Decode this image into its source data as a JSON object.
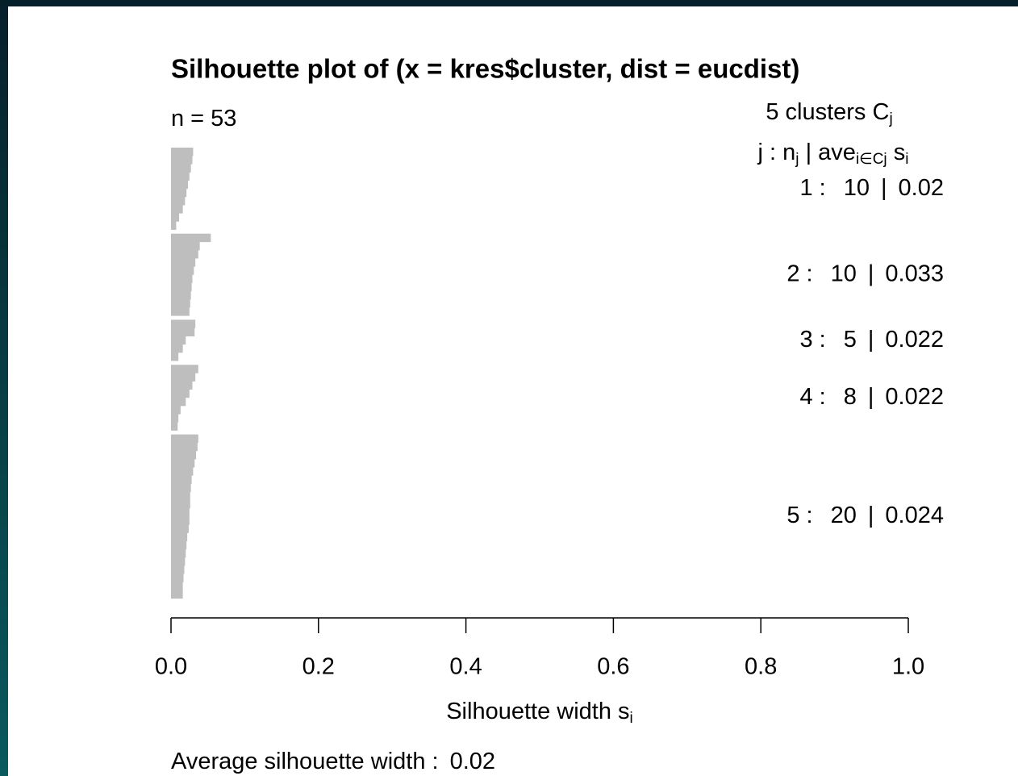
{
  "chart_data": {
    "type": "silhouette",
    "title": "Silhouette plot of (x = kres$cluster, dist = eucdist)",
    "n_prefix": "n =",
    "n": 53,
    "legend_title": [
      "5  clusters  C",
      "j"
    ],
    "legend_header": [
      "j :  n",
      "j",
      " | ave",
      "i∈Cj",
      "  s",
      "i"
    ],
    "row_separators": [
      ":",
      "|"
    ],
    "color": "#bebebe",
    "series": [
      {
        "name": "1",
        "size": 10,
        "average": 0.02,
        "values": [
          0.03,
          0.029,
          0.027,
          0.025,
          0.023,
          0.021,
          0.019,
          0.016,
          0.011,
          0.007
        ]
      },
      {
        "name": "2",
        "size": 10,
        "average": 0.033,
        "values": [
          0.054,
          0.039,
          0.037,
          0.033,
          0.031,
          0.029,
          0.028,
          0.027,
          0.026,
          0.025
        ]
      },
      {
        "name": "3",
        "size": 5,
        "average": 0.022,
        "values": [
          0.033,
          0.032,
          0.02,
          0.016,
          0.01
        ]
      },
      {
        "name": "4",
        "size": 8,
        "average": 0.022,
        "values": [
          0.037,
          0.033,
          0.029,
          0.025,
          0.02,
          0.013,
          0.01,
          0.009
        ]
      },
      {
        "name": "5",
        "size": 20,
        "average": 0.024,
        "values": [
          0.037,
          0.036,
          0.034,
          0.032,
          0.03,
          0.028,
          0.027,
          0.026,
          0.026,
          0.025,
          0.025,
          0.024,
          0.022,
          0.021,
          0.02,
          0.019,
          0.018,
          0.017,
          0.016,
          0.016
        ]
      }
    ],
    "xlim": [
      0,
      1
    ],
    "xticks": [
      {
        "value": 0,
        "label": "0.0"
      },
      0.2,
      0.4,
      0.6,
      0.8,
      {
        "value": 1,
        "label": "1.0"
      }
    ],
    "xlabel": [
      "Silhouette width s",
      "i"
    ],
    "footer_label": "Average silhouette width :",
    "footer_value": 0.02
  }
}
